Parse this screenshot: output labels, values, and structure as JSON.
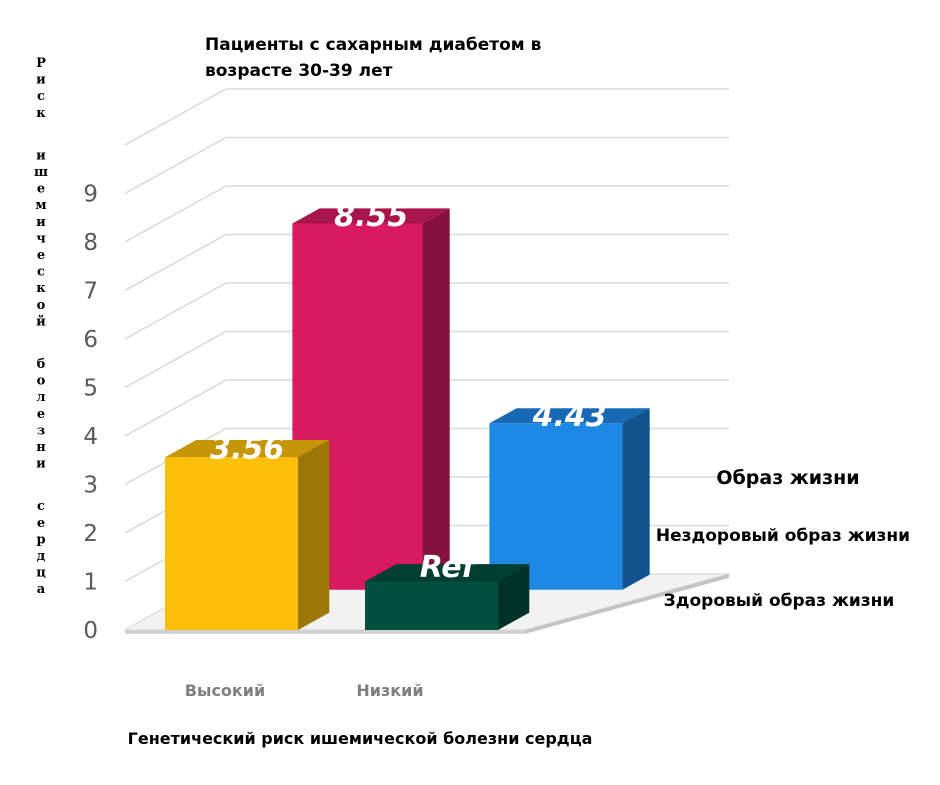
{
  "chart_data": {
    "type": "bar",
    "title_lines": [
      "Пациенты с сахарным диабетом в",
      "возрасте 30-39 лет"
    ],
    "xlabel": "Генетический риск ишемической болезни сердца",
    "ylabel": "Риск ишемической болезни сердца",
    "ylim": [
      0,
      9
    ],
    "yticks": [
      "0",
      "1",
      "2",
      "3",
      "4",
      "5",
      "6",
      "7",
      "8",
      "9"
    ],
    "categories": [
      "Высокий",
      "Низкий"
    ],
    "legend_title": "Образ жизни",
    "legend_placement": "right",
    "series": [
      {
        "name": "Нездоровый образ жизни",
        "values": [
          8.55,
          4.43
        ],
        "labels": [
          "8.55",
          "4.43"
        ],
        "colors": [
          "#D81B5E",
          "#1E88E5"
        ]
      },
      {
        "name": "Здоровый образ жизни",
        "values": [
          3.56,
          1.0
        ],
        "labels": [
          "3.56",
          "Ref"
        ],
        "colors": [
          "#FDC00A",
          "#00503F"
        ]
      }
    ]
  }
}
